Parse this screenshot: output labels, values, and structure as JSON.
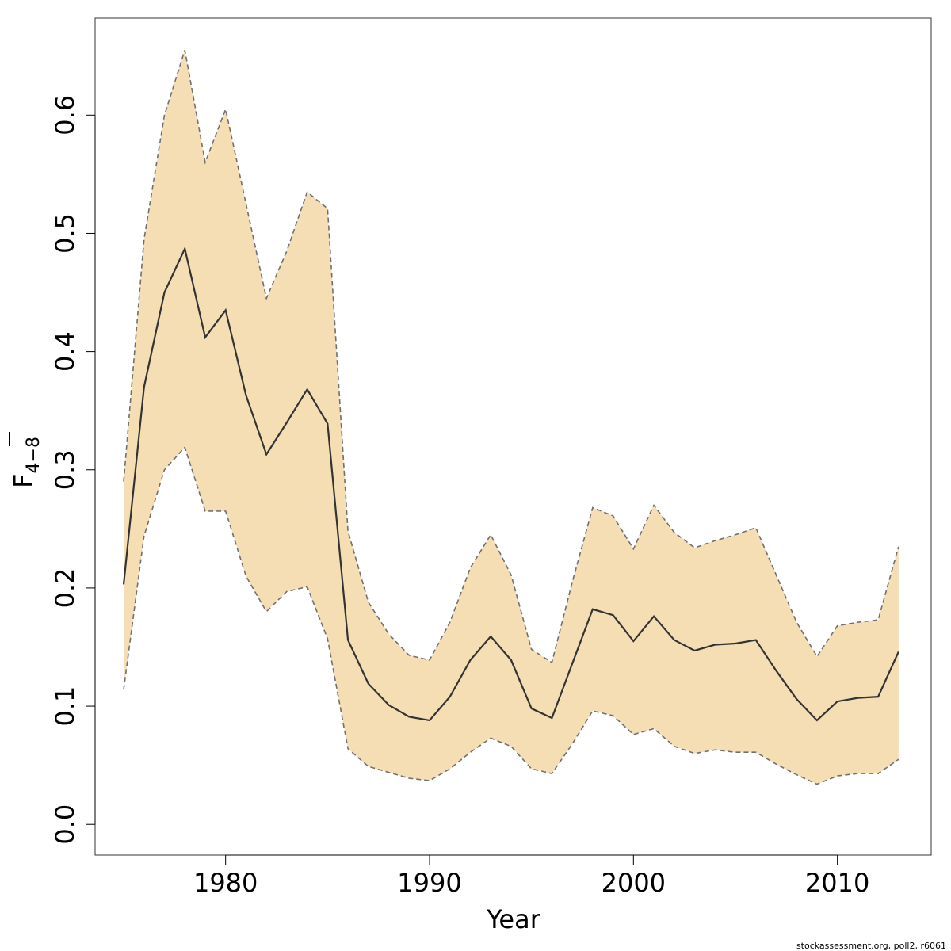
{
  "chart_data": {
    "type": "area",
    "xlabel": "Year",
    "ylabel": {
      "main": "F",
      "subscript": "4−8"
    },
    "xlim": [
      1973.6,
      2014.6
    ],
    "ylim": [
      -0.026,
      0.682
    ],
    "xticks": [
      1980,
      1990,
      2000,
      2010
    ],
    "yticks": [
      0.0,
      0.1,
      0.2,
      0.3,
      0.4,
      0.5,
      0.6
    ],
    "ytick_labels": [
      "0.0",
      "0.1",
      "0.2",
      "0.3",
      "0.4",
      "0.5",
      "0.6"
    ],
    "grid": false,
    "colors": {
      "band": "#f5deb3",
      "line": "#333333",
      "bounds": "#707070"
    },
    "x": [
      1975,
      1976,
      1977,
      1978,
      1979,
      1980,
      1981,
      1982,
      1983,
      1984,
      1985,
      1986,
      1987,
      1988,
      1989,
      1990,
      1991,
      1992,
      1993,
      1994,
      1995,
      1996,
      1997,
      1998,
      1999,
      2000,
      2001,
      2002,
      2003,
      2004,
      2005,
      2006,
      2007,
      2008,
      2009,
      2010,
      2011,
      2012,
      2013
    ],
    "series": [
      {
        "role": "estimate",
        "values": [
          0.203,
          0.37,
          0.45,
          0.487,
          0.412,
          0.435,
          0.363,
          0.313,
          0.34,
          0.368,
          0.339,
          0.156,
          0.119,
          0.101,
          0.091,
          0.088,
          0.108,
          0.139,
          0.159,
          0.139,
          0.098,
          0.09,
          0.136,
          0.182,
          0.177,
          0.155,
          0.176,
          0.156,
          0.147,
          0.152,
          0.153,
          0.156,
          0.13,
          0.106,
          0.088,
          0.104,
          0.107,
          0.108,
          0.146
        ]
      },
      {
        "role": "upper",
        "values": [
          0.29,
          0.495,
          0.6,
          0.655,
          0.56,
          0.605,
          0.525,
          0.445,
          0.485,
          0.535,
          0.521,
          0.248,
          0.188,
          0.161,
          0.143,
          0.139,
          0.171,
          0.217,
          0.245,
          0.211,
          0.148,
          0.137,
          0.205,
          0.268,
          0.261,
          0.233,
          0.27,
          0.247,
          0.234,
          0.24,
          0.245,
          0.251,
          0.211,
          0.171,
          0.142,
          0.168,
          0.171,
          0.173,
          0.235
        ]
      },
      {
        "role": "lower",
        "values": [
          0.114,
          0.244,
          0.3,
          0.319,
          0.265,
          0.265,
          0.21,
          0.18,
          0.197,
          0.201,
          0.157,
          0.064,
          0.049,
          0.044,
          0.039,
          0.037,
          0.047,
          0.061,
          0.073,
          0.066,
          0.047,
          0.043,
          0.068,
          0.096,
          0.092,
          0.076,
          0.081,
          0.066,
          0.06,
          0.063,
          0.061,
          0.061,
          0.051,
          0.042,
          0.034,
          0.041,
          0.043,
          0.043,
          0.055
        ]
      }
    ]
  },
  "footer": "stockassessment.org, poll2, r6061"
}
